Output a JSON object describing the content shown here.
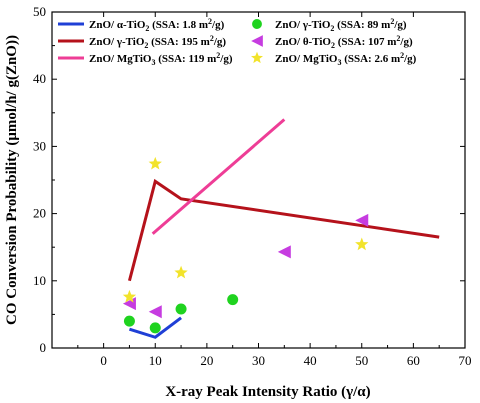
{
  "chart_data": {
    "type": "scatter",
    "xlabel": "X-ray Peak Intensity Ratio (γ/α)",
    "ylabel": "CO Conversion Probability (μmol/h/ g(ZnO))",
    "xlim": [
      -10,
      70
    ],
    "ylim": [
      0,
      50
    ],
    "xticks": [
      0,
      10,
      20,
      30,
      40,
      50,
      60,
      70
    ],
    "yticks": [
      0,
      10,
      20,
      30,
      40,
      50
    ],
    "grid": false,
    "legend_position": "top",
    "line_series": [
      {
        "name": "ZnO/ α-TiO2 (SSA: 1.8 m2/g)",
        "color": "#1f3fd6",
        "x": [
          5,
          10,
          15
        ],
        "y": [
          2.8,
          1.6,
          4.5
        ]
      },
      {
        "name": "ZnO/ γ-TiO2 (SSA: 195 m2/g)",
        "color": "#b5121b",
        "x": [
          5,
          10,
          15,
          65
        ],
        "y": [
          10,
          24.8,
          22.2,
          16.5
        ]
      },
      {
        "name": "ZnO/ MgTiO3 (SSA: 119 m2/g)",
        "color": "#ee3d96",
        "x": [
          9.5,
          35
        ],
        "y": [
          17,
          34
        ]
      }
    ],
    "marker_series": [
      {
        "name": "ZnO/ γ-TiO2 (SSA: 89 m2/g)",
        "color": "#1fd31f",
        "marker": "circle",
        "x": [
          5,
          10,
          15,
          25
        ],
        "y": [
          4,
          3,
          5.8,
          7.2
        ]
      },
      {
        "name": "ZnO/ θ-TiO2 (SSA: 107 m2/g)",
        "color": "#c63ce0",
        "marker": "triangle-left",
        "x": [
          5,
          10,
          35,
          50
        ],
        "y": [
          6.6,
          5.4,
          14.3,
          19
        ]
      },
      {
        "name": "ZnO/ MgTiO3 (SSA: 2.6 m2/g)",
        "color": "#f2e32b",
        "marker": "star",
        "x": [
          5,
          10,
          15,
          50
        ],
        "y": [
          7.6,
          27.4,
          11.2,
          15.4
        ]
      }
    ],
    "legend": {
      "left": [
        {
          "type": "line",
          "color": "#1f3fd6",
          "text": "ZnO/ α-TiO",
          "sub": "2",
          "tail": " (SSA: 1.8 m",
          "sup": "2",
          "end": "/g)"
        },
        {
          "type": "line",
          "color": "#b5121b",
          "text": "ZnO/ γ-TiO",
          "sub": "2",
          "tail": " (SSA: 195 m",
          "sup": "2",
          "end": "/g)"
        },
        {
          "type": "line",
          "color": "#ee3d96",
          "text": "ZnO/ MgTiO",
          "sub": "3",
          "tail": " (SSA: 119 m",
          "sup": "2",
          "end": "/g)"
        }
      ],
      "right": [
        {
          "type": "circle",
          "color": "#1fd31f",
          "text": "ZnO/ γ-TiO",
          "sub": "2",
          "tail": " (SSA: 89 m",
          "sup": "2",
          "end": "/g)"
        },
        {
          "type": "triangle-left",
          "color": "#c63ce0",
          "text": "ZnO/ θ-TiO",
          "sub": "2",
          "tail": " (SSA: 107 m",
          "sup": "2",
          "end": "/g)"
        },
        {
          "type": "star",
          "color": "#f2e32b",
          "text": "ZnO/ MgTiO",
          "sub": "3",
          "tail": " (SSA: 2.6 m",
          "sup": "2",
          "end": "/g)"
        }
      ]
    }
  }
}
